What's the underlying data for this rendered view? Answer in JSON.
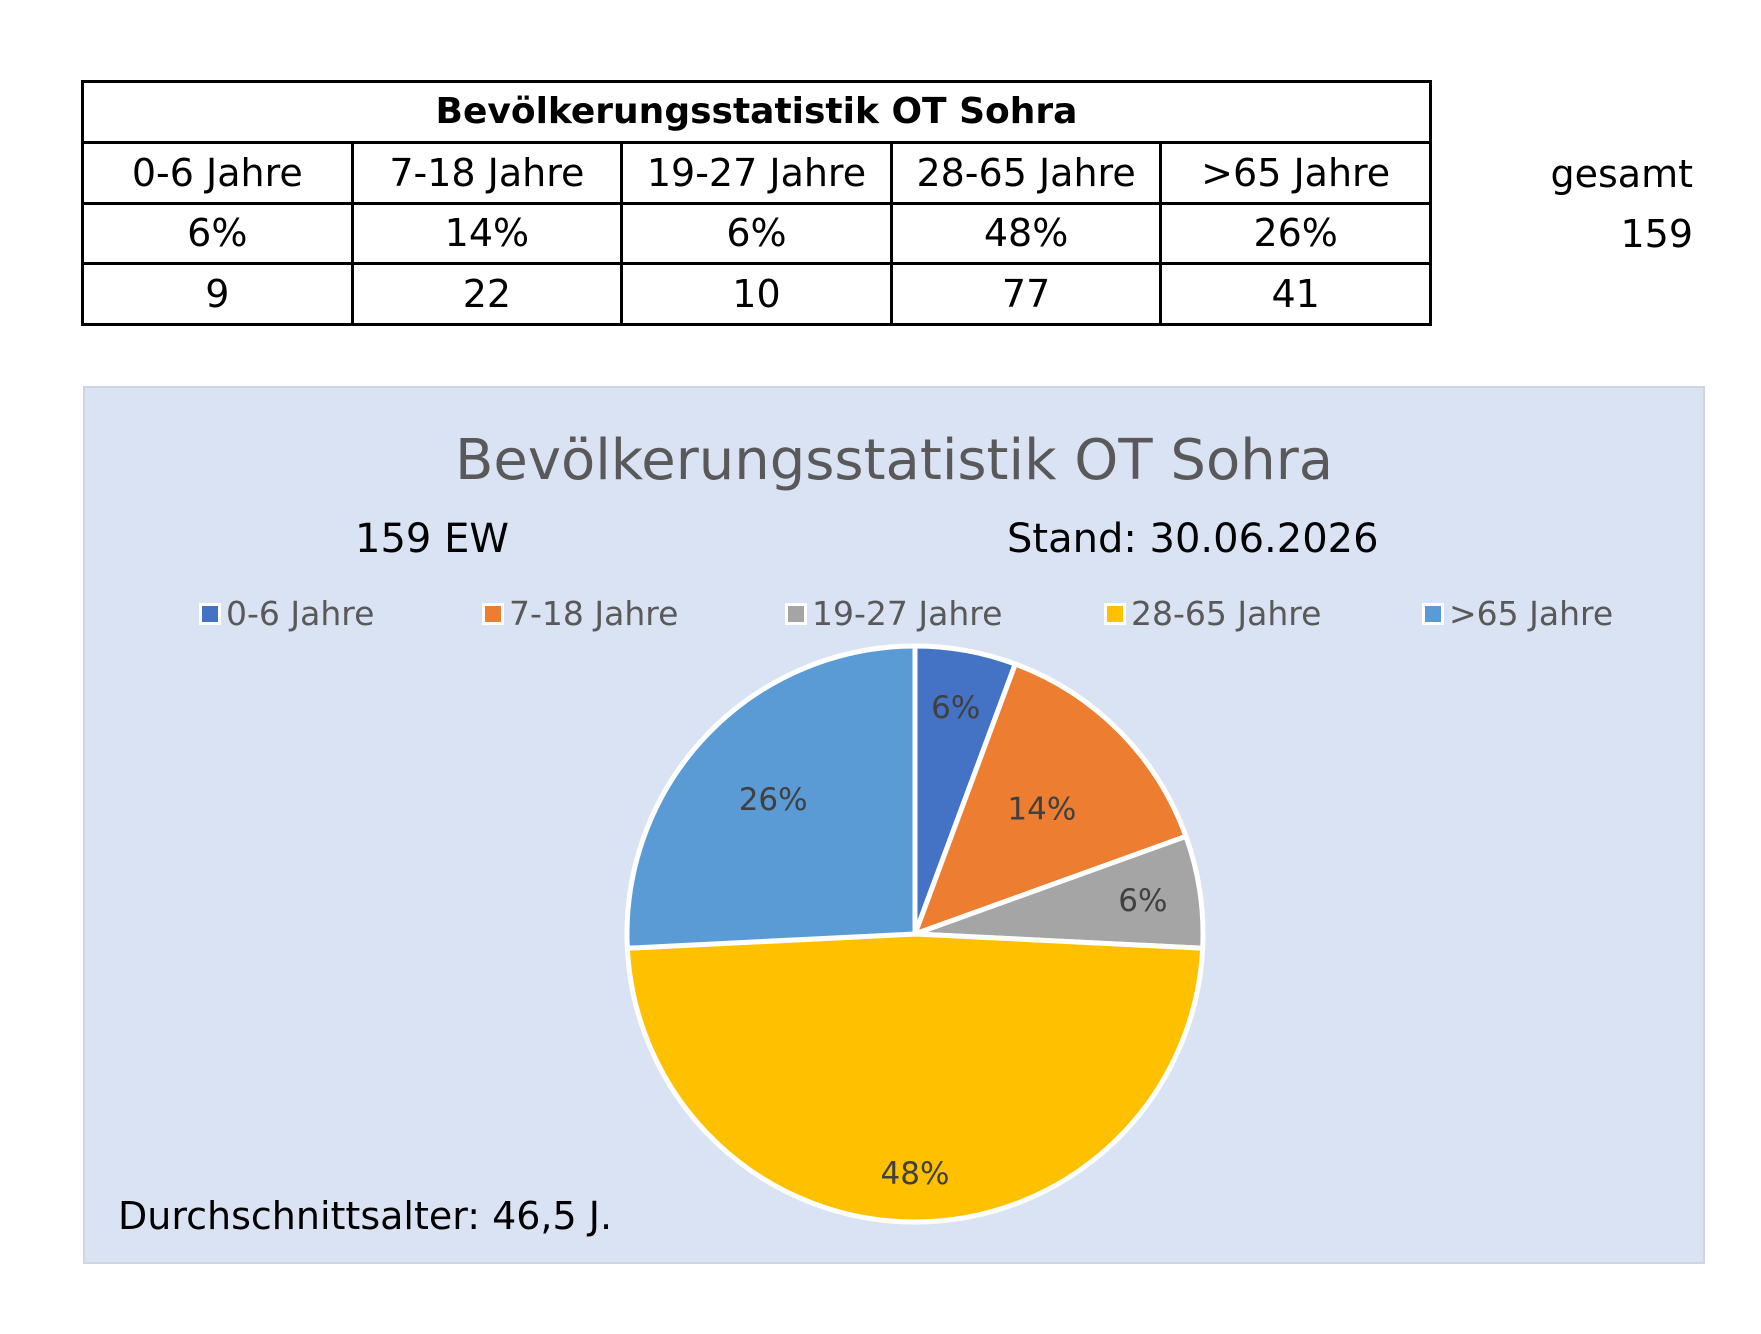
{
  "table": {
    "title": "Bevölkerungsstatistik OT Sohra",
    "headers": [
      "0-6 Jahre",
      "7-18 Jahre",
      "19-27 Jahre",
      "28-65 Jahre",
      ">65 Jahre"
    ],
    "percents": [
      "6%",
      "14%",
      "6%",
      "48%",
      "26%"
    ],
    "counts": [
      "9",
      "22",
      "10",
      "77",
      "41"
    ],
    "total_label": "gesamt",
    "total_value": "159"
  },
  "chart_data": {
    "type": "pie",
    "title": "Bevölkerungsstatistik OT Sohra",
    "subtitle_left": "159 EW",
    "subtitle_right": "Stand: 30.06.2026",
    "footnote": "Durchschnittsalter: 46,5 J.",
    "legend_position": "top",
    "categories": [
      "0-6 Jahre",
      "7-18 Jahre",
      "19-27 Jahre",
      "28-65 Jahre",
      ">65 Jahre"
    ],
    "values": [
      9,
      22,
      10,
      77,
      41
    ],
    "labels": [
      "6%",
      "14%",
      "6%",
      "48%",
      "26%"
    ],
    "colors": [
      "#4472c4",
      "#ed7d31",
      "#a5a5a5",
      "#ffc000",
      "#5b9bd5"
    ]
  }
}
